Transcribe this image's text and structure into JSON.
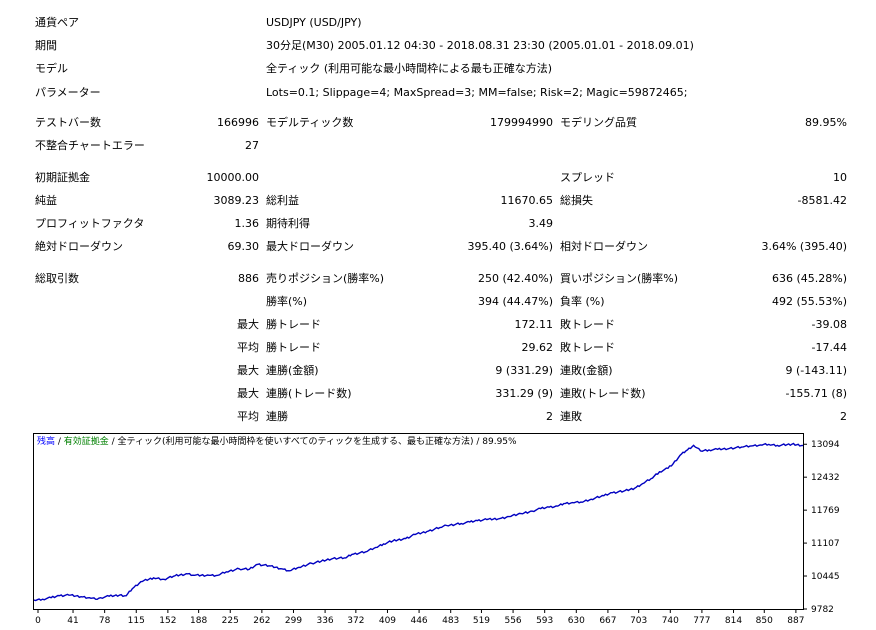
{
  "info": {
    "symbol_label": "通貨ペア",
    "symbol_value": "USDJPY (USD/JPY)",
    "period_label": "期間",
    "period_value": "30分足(M30) 2005.01.12 04:30 - 2018.08.31 23:30 (2005.01.01 - 2018.09.01)",
    "model_label": "モデル",
    "model_value": "全ティック (利用可能な最小時間枠による最も正確な方法)",
    "params_label": "パラメーター",
    "params_value": "Lots=0.1; Slippage=4; MaxSpread=3; MM=false; Risk=2; Magic=59872465;"
  },
  "stats": {
    "bars_label": "テストバー数",
    "bars_value": "166996",
    "ticks_label": "モデルティック数",
    "ticks_value": "179994990",
    "quality_label": "モデリング品質",
    "quality_value": "89.95%",
    "errors_label": "不整合チャートエラー",
    "errors_value": "27",
    "deposit_label": "初期証拠金",
    "deposit_value": "10000.00",
    "spread_label": "スプレッド",
    "spread_value": "10",
    "net_label": "純益",
    "net_value": "3089.23",
    "gross_profit_label": "総利益",
    "gross_profit_value": "11670.65",
    "gross_loss_label": "総損失",
    "gross_loss_value": "-8581.42",
    "pf_label": "プロフィットファクタ",
    "pf_value": "1.36",
    "payoff_label": "期待利得",
    "payoff_value": "3.49",
    "abs_dd_label": "絶対ドローダウン",
    "abs_dd_value": "69.30",
    "max_dd_label": "最大ドローダウン",
    "max_dd_value": "395.40 (3.64%)",
    "rel_dd_label": "相対ドローダウン",
    "rel_dd_value": "3.64% (395.40)",
    "trades_label": "総取引数",
    "trades_value": "886",
    "short_label": "売りポジション(勝率%)",
    "short_value": "250 (42.40%)",
    "long_label": "買いポジション(勝率%)",
    "long_value": "636 (45.28%)",
    "win_label": "勝率(%)",
    "win_value": "394 (44.47%)",
    "loss_label": "負率 (%)",
    "loss_value": "492 (55.53%)",
    "largest_prefix": "最大",
    "average_prefix": "平均",
    "largest_win_label": "勝トレード",
    "largest_win_value": "172.11",
    "largest_loss_label": "敗トレード",
    "largest_loss_value": "-39.08",
    "avg_win_label": "勝トレード",
    "avg_win_value": "29.62",
    "avg_loss_label": "敗トレード",
    "avg_loss_value": "-17.44",
    "max_cons_wins_label": "連勝(金額)",
    "max_cons_wins_value": "9 (331.29)",
    "max_cons_losses_label": "連敗(金額)",
    "max_cons_losses_value": "9 (-143.11)",
    "max_cons_profit_label": "連勝(トレード数)",
    "max_cons_profit_value": "331.29 (9)",
    "max_cons_loss_label": "連敗(トレード数)",
    "max_cons_loss_value": "-155.71 (8)",
    "avg_cons_wins_label": "連勝",
    "avg_cons_wins_value": "2",
    "avg_cons_losses_label": "連敗",
    "avg_cons_losses_value": "2"
  },
  "chart_title": {
    "part1": "残高",
    "sep1": " / ",
    "part2": "有効証拠金",
    "part3": " / 全ティック(利用可能な最小時間枠を使いすべてのティックを生成する、最も正確な方法) / 89.95%"
  },
  "colors": {
    "balance": "#0000c0",
    "title_balance": "#0000ff",
    "title_equity": "#008000"
  },
  "chart_data": {
    "type": "line",
    "title": "残高 / 有効証拠金 / 全ティック(利用可能な最小時間枠を使いすべてのティックを生成する、最も正確な方法) / 89.95%",
    "xlabel": "",
    "ylabel": "",
    "xlim": [
      0,
      900
    ],
    "ylim": [
      9782,
      13300
    ],
    "x_ticks": [
      "0",
      "41",
      "78",
      "115",
      "152",
      "188",
      "225",
      "262",
      "299",
      "336",
      "372",
      "409",
      "446",
      "483",
      "519",
      "556",
      "593",
      "630",
      "667",
      "703",
      "740",
      "777",
      "814",
      "850",
      "887"
    ],
    "y_ticks": [
      "13094",
      "12432",
      "11769",
      "11107",
      "10445",
      "9782"
    ],
    "grid": false,
    "series": [
      {
        "values": [
          [
            0,
            9960
          ],
          [
            10,
            9980
          ],
          [
            20,
            10010
          ],
          [
            30,
            10050
          ],
          [
            41,
            10060
          ],
          [
            55,
            10030
          ],
          [
            65,
            10010
          ],
          [
            72,
            9980
          ],
          [
            78,
            10010
          ],
          [
            88,
            10040
          ],
          [
            100,
            10060
          ],
          [
            108,
            10050
          ],
          [
            115,
            10190
          ],
          [
            125,
            10330
          ],
          [
            140,
            10410
          ],
          [
            152,
            10380
          ],
          [
            165,
            10450
          ],
          [
            180,
            10490
          ],
          [
            188,
            10460
          ],
          [
            205,
            10460
          ],
          [
            215,
            10460
          ],
          [
            225,
            10530
          ],
          [
            240,
            10590
          ],
          [
            252,
            10580
          ],
          [
            262,
            10680
          ],
          [
            275,
            10650
          ],
          [
            290,
            10590
          ],
          [
            299,
            10550
          ],
          [
            310,
            10620
          ],
          [
            325,
            10700
          ],
          [
            336,
            10740
          ],
          [
            350,
            10800
          ],
          [
            365,
            10810
          ],
          [
            372,
            10880
          ],
          [
            388,
            10930
          ],
          [
            400,
            11020
          ],
          [
            409,
            11090
          ],
          [
            420,
            11150
          ],
          [
            435,
            11200
          ],
          [
            446,
            11280
          ],
          [
            460,
            11340
          ],
          [
            475,
            11420
          ],
          [
            483,
            11460
          ],
          [
            500,
            11500
          ],
          [
            510,
            11530
          ],
          [
            519,
            11560
          ],
          [
            530,
            11580
          ],
          [
            545,
            11600
          ],
          [
            556,
            11640
          ],
          [
            570,
            11700
          ],
          [
            583,
            11750
          ],
          [
            593,
            11800
          ],
          [
            603,
            11830
          ],
          [
            613,
            11850
          ],
          [
            620,
            11900
          ],
          [
            630,
            11920
          ],
          [
            640,
            11930
          ],
          [
            652,
            11990
          ],
          [
            667,
            12060
          ],
          [
            677,
            12120
          ],
          [
            690,
            12150
          ],
          [
            703,
            12210
          ],
          [
            712,
            12300
          ],
          [
            722,
            12400
          ],
          [
            732,
            12540
          ],
          [
            742,
            12610
          ],
          [
            748,
            12700
          ],
          [
            756,
            12870
          ],
          [
            763,
            12960
          ],
          [
            772,
            13070
          ],
          [
            780,
            12960
          ],
          [
            790,
            12980
          ],
          [
            800,
            12990
          ],
          [
            814,
            13010
          ],
          [
            830,
            13040
          ],
          [
            840,
            13060
          ],
          [
            850,
            13080
          ],
          [
            860,
            13090
          ],
          [
            870,
            13070
          ],
          [
            887,
            13094
          ],
          [
            900,
            13070
          ]
        ]
      }
    ]
  }
}
